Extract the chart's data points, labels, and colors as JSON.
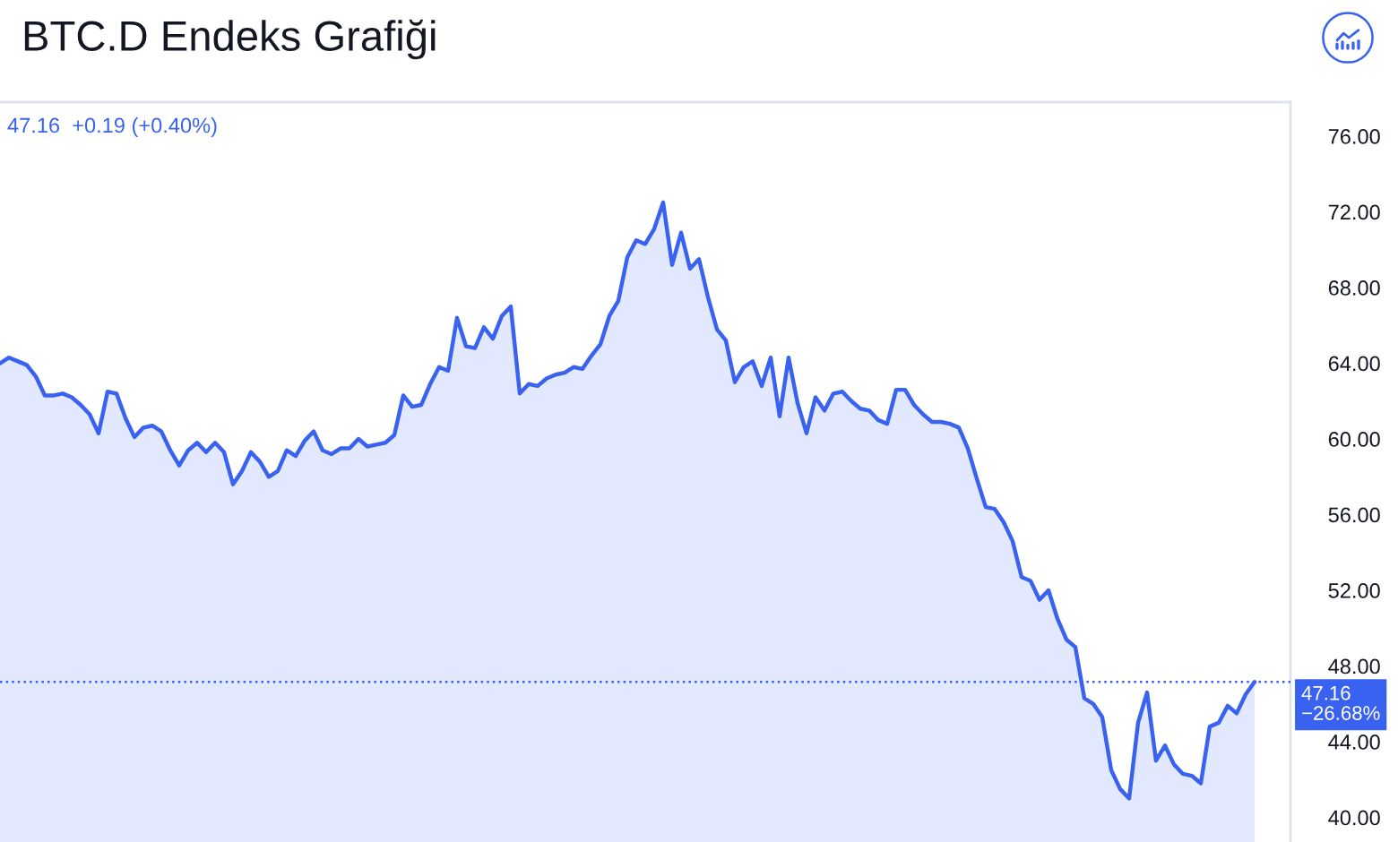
{
  "chart_data": {
    "type": "area",
    "title": "BTC.D Endeks Grafiği",
    "annotations": [
      "47.16  +0.19 (+0.40%)"
    ],
    "categories": [
      null,
      null,
      null,
      null,
      null,
      null,
      null,
      null,
      null,
      null,
      null,
      null,
      null,
      null,
      null,
      null,
      null,
      null,
      null,
      null,
      null,
      null,
      null,
      null,
      null,
      null,
      null,
      null,
      null,
      null,
      null,
      null,
      null,
      null,
      null,
      null,
      null,
      null,
      null,
      null,
      null,
      null,
      null,
      null,
      null,
      null,
      null,
      null,
      null,
      null,
      null,
      null,
      null,
      null,
      null,
      null,
      null,
      null,
      null,
      null,
      null,
      null,
      null,
      null,
      null,
      null,
      null,
      null,
      null,
      null,
      null,
      null,
      null,
      null,
      null,
      null,
      null,
      null,
      null,
      null,
      null,
      null,
      null,
      null,
      null,
      null,
      null,
      null,
      null,
      null,
      null,
      null,
      null,
      null,
      null,
      null,
      null,
      null,
      null,
      null,
      null,
      null,
      null,
      null,
      null,
      null,
      null,
      null,
      null,
      null,
      null,
      null,
      null,
      null,
      null,
      null,
      null,
      null,
      null,
      null,
      null,
      null,
      null,
      null,
      null,
      null,
      null,
      null,
      null,
      null,
      null,
      null,
      null,
      null,
      null,
      null,
      null,
      null,
      null,
      null,
      null
    ],
    "series": [
      {
        "color": "#3a62f0",
        "values": [
          64.0,
          64.3,
          64.1,
          63.9,
          63.3,
          62.3,
          62.3,
          62.4,
          62.2,
          61.8,
          61.3,
          60.3,
          62.5,
          62.4,
          61.1,
          60.1,
          60.6,
          60.7,
          60.4,
          59.4,
          58.6,
          59.4,
          59.8,
          59.3,
          59.8,
          59.3,
          57.6,
          58.3,
          59.3,
          58.8,
          58.0,
          58.3,
          59.4,
          59.1,
          59.9,
          60.4,
          59.4,
          59.2,
          59.5,
          59.5,
          60.0,
          59.6,
          59.7,
          59.8,
          60.2,
          62.3,
          61.7,
          61.8,
          62.9,
          63.8,
          63.6,
          66.4,
          64.9,
          64.8,
          65.9,
          65.3,
          66.5,
          67.0,
          62.4,
          62.9,
          62.8,
          63.2,
          63.4,
          63.5,
          63.8,
          63.7,
          64.4,
          65.0,
          66.5,
          67.3,
          69.6,
          70.5,
          70.3,
          71.1,
          72.5,
          69.2,
          70.9,
          69.0,
          69.5,
          67.5,
          65.8,
          65.2,
          63.0,
          63.8,
          64.1,
          62.8,
          64.3,
          61.2,
          64.3,
          61.9,
          60.3,
          62.2,
          61.5,
          62.4,
          62.5,
          62.0,
          61.6,
          61.5,
          61.0,
          60.8,
          62.6,
          62.6,
          61.8,
          61.3,
          60.9,
          60.9,
          60.8,
          60.6,
          59.5,
          57.9,
          56.4,
          56.3,
          55.6,
          54.6,
          52.7,
          52.5,
          51.5,
          52.0,
          50.5,
          49.4,
          49.0,
          46.3,
          46.0,
          45.3,
          42.5,
          41.5,
          41.0,
          45.0,
          46.6,
          43.0,
          43.8,
          42.8,
          42.3,
          42.2,
          41.8,
          44.8,
          45.0,
          45.9,
          45.5,
          46.5,
          47.16
        ]
      }
    ],
    "ylim": [
      38.7,
      77.8
    ],
    "yticks": [
      {
        "value": 40,
        "label": "40.00"
      },
      {
        "value": 44,
        "label": "44.00"
      },
      {
        "value": 48,
        "label": "48.00"
      },
      {
        "value": 52,
        "label": "52.00"
      },
      {
        "value": 56,
        "label": "56.00"
      },
      {
        "value": 60,
        "label": "60.00"
      },
      {
        "value": 64,
        "label": "64.00"
      },
      {
        "value": 68,
        "label": "68.00"
      },
      {
        "value": 72,
        "label": "72.00"
      },
      {
        "value": 76,
        "label": "76.00"
      }
    ],
    "tick_labels": "y",
    "grid": false,
    "ref_lines": [
      {
        "axis": "y",
        "value": 47.16,
        "label": "47.16\n−26.68%",
        "color": "#3a62f0",
        "line_style": "dotted"
      }
    ]
  }
}
